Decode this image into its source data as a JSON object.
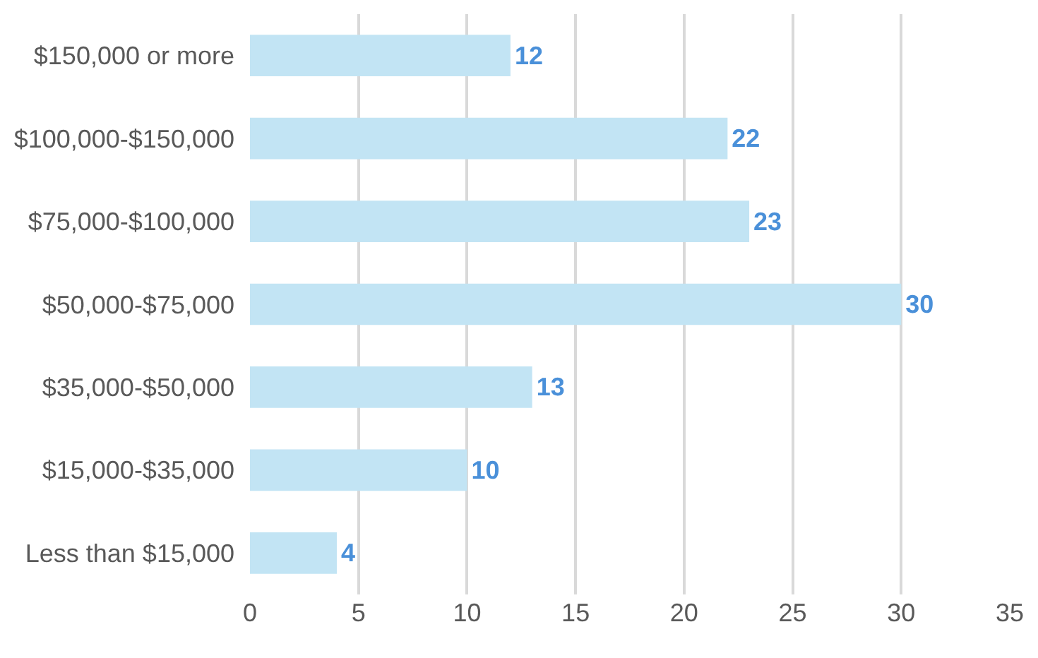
{
  "chart_data": {
    "type": "bar",
    "orientation": "horizontal",
    "categories": [
      "$150,000 or more",
      "$100,000-$150,000",
      "$75,000-$100,000",
      "$50,000-$75,000",
      "$35,000-$50,000",
      "$15,000-$35,000",
      "Less than $15,000"
    ],
    "values": [
      12,
      22,
      23,
      30,
      13,
      10,
      4
    ],
    "color": "#c2e4f4",
    "xlim": [
      0,
      35
    ],
    "xticks": [
      0,
      5,
      10,
      15,
      20,
      25,
      30,
      35
    ],
    "grid": "x",
    "data_labels": true
  }
}
